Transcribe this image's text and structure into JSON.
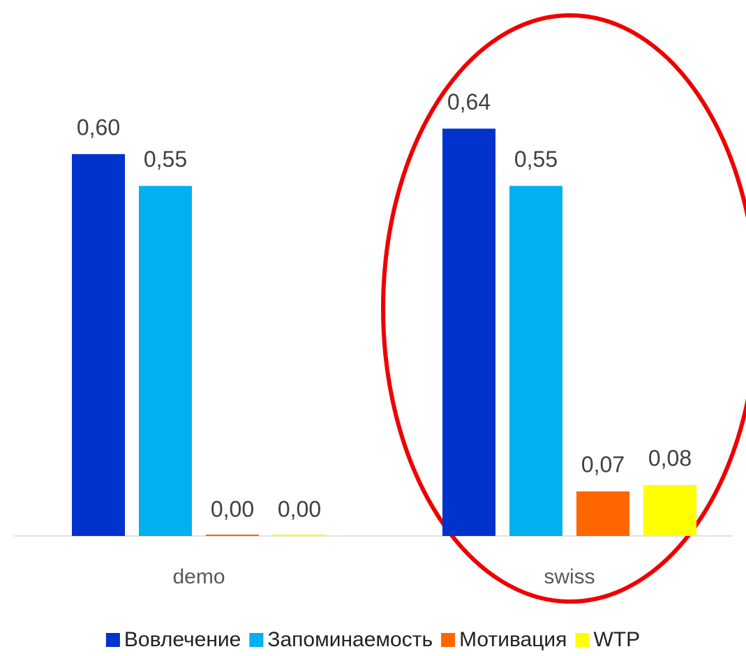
{
  "chart_data": {
    "type": "bar",
    "categories": [
      "demo",
      "swiss"
    ],
    "series": [
      {
        "name": "Вовлечение",
        "color": "#0033cc",
        "values": [
          0.6,
          0.64
        ],
        "value_labels": [
          "0,60",
          "0,64"
        ]
      },
      {
        "name": "Запоминаемость",
        "color": "#00b0f0",
        "values": [
          0.55,
          0.55
        ],
        "value_labels": [
          "0,55",
          "0,55"
        ]
      },
      {
        "name": "Мотивация",
        "color": "#ff6600",
        "values": [
          0.0,
          0.07
        ],
        "value_labels": [
          "0,00",
          "0,07"
        ]
      },
      {
        "name": "WTP",
        "color": "#ffff00",
        "values": [
          0.0,
          0.08
        ],
        "value_labels": [
          "0,00",
          "0,08"
        ]
      }
    ],
    "legend": "bottom"
  }
}
